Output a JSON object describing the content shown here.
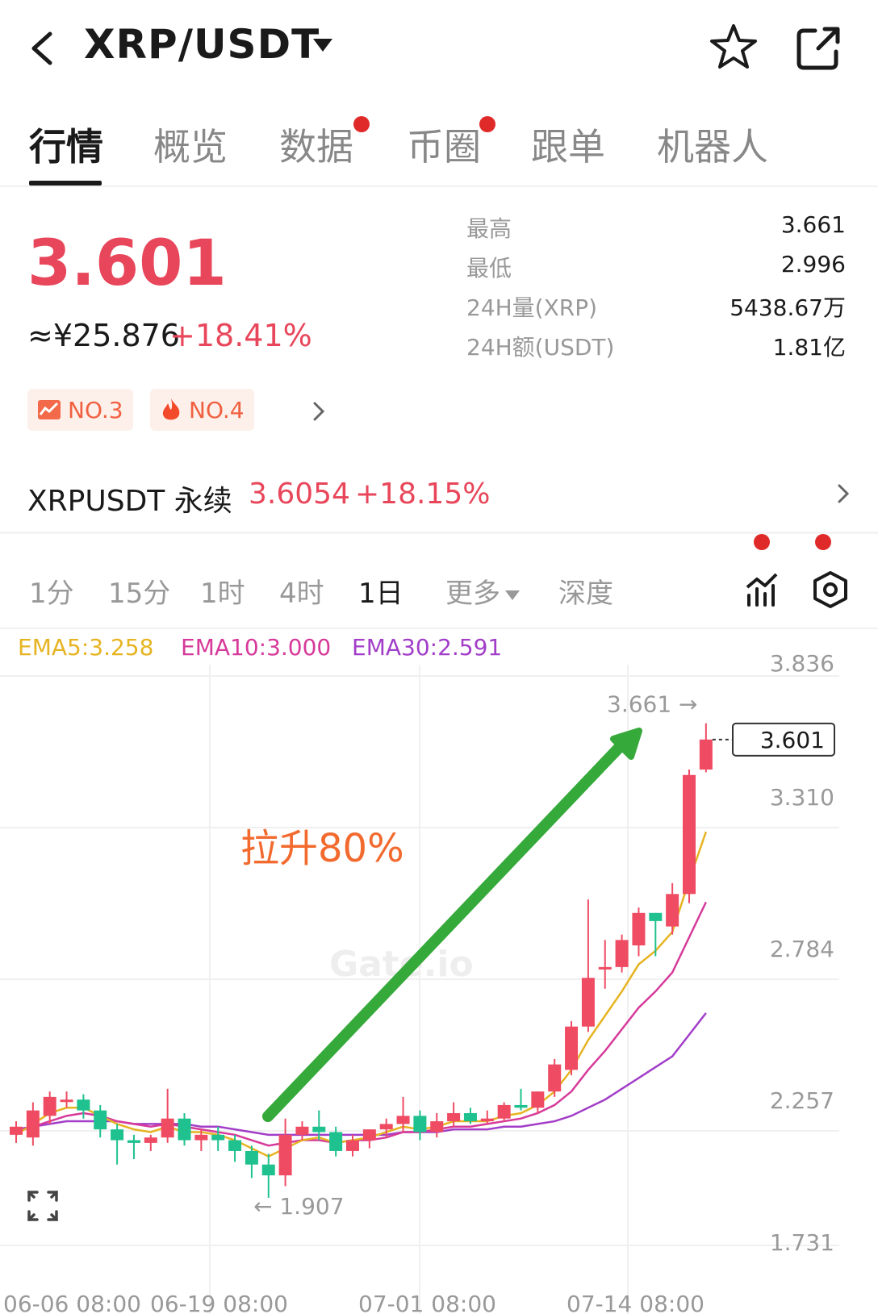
{
  "header": {
    "pair": "XRP/USDT",
    "icons": [
      "back-arrow-icon",
      "caret-down-icon",
      "star-icon",
      "share-icon"
    ]
  },
  "tabs": [
    {
      "label": "行情",
      "active": true,
      "dot": false
    },
    {
      "label": "概览",
      "active": false,
      "dot": false
    },
    {
      "label": "数据",
      "active": false,
      "dot": true
    },
    {
      "label": "币圈",
      "active": false,
      "dot": true
    },
    {
      "label": "跟单",
      "active": false,
      "dot": false
    },
    {
      "label": "机器人",
      "active": false,
      "dot": false
    }
  ],
  "price": {
    "last": "3.601",
    "cny": "≈¥25.876",
    "change_pct": "+18.41%"
  },
  "badges": [
    {
      "icon": "chart-rank-icon",
      "label": "NO.3"
    },
    {
      "icon": "fire-icon",
      "label": "NO.4"
    }
  ],
  "stats": [
    {
      "label": "最高",
      "value": "3.661"
    },
    {
      "label": "最低",
      "value": "2.996"
    },
    {
      "label": "24H量(XRP)",
      "value": "5438.67万"
    },
    {
      "label": "24H额(USDT)",
      "value": "1.81亿"
    }
  ],
  "perpetual": {
    "name": "XRPUSDT 永续",
    "price": "3.6054",
    "change_pct": "+18.15%"
  },
  "intervals": [
    {
      "label": "1分",
      "active": false
    },
    {
      "label": "15分",
      "active": false
    },
    {
      "label": "1时",
      "active": false
    },
    {
      "label": "4时",
      "active": false
    },
    {
      "label": "1日",
      "active": true
    },
    {
      "label": "更多",
      "active": false
    },
    {
      "label": "深度",
      "active": false
    }
  ],
  "ema": [
    {
      "label": "EMA5:3.258",
      "color": "#e6b422"
    },
    {
      "label": "EMA10:3.000",
      "color": "#d63a9a"
    },
    {
      "label": "EMA30:2.591",
      "color": "#a23ec8"
    }
  ],
  "colors": {
    "up": "#ef4b63",
    "down": "#1fc18f",
    "ema5": "#e6b422",
    "ema10": "#d63a9a",
    "ema30": "#a23ec8",
    "annotation_arrow": "#35a93a",
    "annotation_text": "#f26a2e"
  },
  "chart_data": {
    "type": "candlestick",
    "y_ticks": [
      "3.836",
      "3.310",
      "2.784",
      "2.257",
      "1.731"
    ],
    "x_ticks": [
      "06-06 08:00",
      "06-19 08:00",
      "07-01 08:00",
      "07-14 08:00"
    ],
    "ylim": [
      1.731,
      3.836
    ],
    "last_price_label": "3.601",
    "high_marker": "3.661 →",
    "low_marker": "← 1.907",
    "annotation": "拉升80%",
    "watermark": "Gate.io",
    "candles": [
      {
        "o": 2.14,
        "h": 2.19,
        "l": 2.11,
        "c": 2.17
      },
      {
        "o": 2.13,
        "h": 2.26,
        "l": 2.1,
        "c": 2.23
      },
      {
        "o": 2.21,
        "h": 2.3,
        "l": 2.18,
        "c": 2.28
      },
      {
        "o": 2.27,
        "h": 2.3,
        "l": 2.24,
        "c": 2.27
      },
      {
        "o": 2.27,
        "h": 2.29,
        "l": 2.2,
        "c": 2.23
      },
      {
        "o": 2.23,
        "h": 2.25,
        "l": 2.13,
        "c": 2.16
      },
      {
        "o": 2.16,
        "h": 2.18,
        "l": 2.03,
        "c": 2.12
      },
      {
        "o": 2.12,
        "h": 2.14,
        "l": 2.05,
        "c": 2.11
      },
      {
        "o": 2.11,
        "h": 2.14,
        "l": 2.08,
        "c": 2.13
      },
      {
        "o": 2.13,
        "h": 2.31,
        "l": 2.11,
        "c": 2.2
      },
      {
        "o": 2.2,
        "h": 2.22,
        "l": 2.1,
        "c": 2.12
      },
      {
        "o": 2.12,
        "h": 2.16,
        "l": 2.08,
        "c": 2.14
      },
      {
        "o": 2.14,
        "h": 2.17,
        "l": 2.08,
        "c": 2.12
      },
      {
        "o": 2.12,
        "h": 2.14,
        "l": 2.04,
        "c": 2.08
      },
      {
        "o": 2.08,
        "h": 2.1,
        "l": 1.98,
        "c": 2.03
      },
      {
        "o": 2.03,
        "h": 2.07,
        "l": 1.907,
        "c": 1.99
      },
      {
        "o": 1.99,
        "h": 2.2,
        "l": 1.95,
        "c": 2.14
      },
      {
        "o": 2.14,
        "h": 2.19,
        "l": 2.12,
        "c": 2.17
      },
      {
        "o": 2.17,
        "h": 2.23,
        "l": 2.12,
        "c": 2.15
      },
      {
        "o": 2.15,
        "h": 2.17,
        "l": 2.06,
        "c": 2.08
      },
      {
        "o": 2.08,
        "h": 2.14,
        "l": 2.06,
        "c": 2.12
      },
      {
        "o": 2.12,
        "h": 2.16,
        "l": 2.09,
        "c": 2.16
      },
      {
        "o": 2.16,
        "h": 2.2,
        "l": 2.13,
        "c": 2.18
      },
      {
        "o": 2.18,
        "h": 2.28,
        "l": 2.15,
        "c": 2.21
      },
      {
        "o": 2.21,
        "h": 2.23,
        "l": 2.12,
        "c": 2.15
      },
      {
        "o": 2.15,
        "h": 2.22,
        "l": 2.13,
        "c": 2.19
      },
      {
        "o": 2.19,
        "h": 2.26,
        "l": 2.17,
        "c": 2.22
      },
      {
        "o": 2.22,
        "h": 2.24,
        "l": 2.18,
        "c": 2.19
      },
      {
        "o": 2.19,
        "h": 2.23,
        "l": 2.18,
        "c": 2.2
      },
      {
        "o": 2.2,
        "h": 2.26,
        "l": 2.19,
        "c": 2.25
      },
      {
        "o": 2.25,
        "h": 2.31,
        "l": 2.23,
        "c": 2.24
      },
      {
        "o": 2.24,
        "h": 2.3,
        "l": 2.22,
        "c": 2.3
      },
      {
        "o": 2.3,
        "h": 2.42,
        "l": 2.28,
        "c": 2.4
      },
      {
        "o": 2.38,
        "h": 2.56,
        "l": 2.36,
        "c": 2.54
      },
      {
        "o": 2.54,
        "h": 3.01,
        "l": 2.52,
        "c": 2.72
      },
      {
        "o": 2.76,
        "h": 2.86,
        "l": 2.68,
        "c": 2.76
      },
      {
        "o": 2.76,
        "h": 2.88,
        "l": 2.74,
        "c": 2.86
      },
      {
        "o": 2.84,
        "h": 2.98,
        "l": 2.8,
        "c": 2.96
      },
      {
        "o": 2.96,
        "h": 2.96,
        "l": 2.8,
        "c": 2.93
      },
      {
        "o": 2.91,
        "h": 3.07,
        "l": 2.88,
        "c": 3.03
      },
      {
        "o": 3.03,
        "h": 3.49,
        "l": 2.996,
        "c": 3.47
      },
      {
        "o": 3.49,
        "h": 3.661,
        "l": 3.48,
        "c": 3.601
      }
    ],
    "ema5": [
      2.14,
      2.18,
      2.22,
      2.24,
      2.24,
      2.21,
      2.18,
      2.16,
      2.15,
      2.17,
      2.15,
      2.15,
      2.14,
      2.12,
      2.09,
      2.06,
      2.09,
      2.12,
      2.13,
      2.11,
      2.12,
      2.13,
      2.15,
      2.17,
      2.16,
      2.17,
      2.19,
      2.19,
      2.19,
      2.21,
      2.22,
      2.25,
      2.3,
      2.38,
      2.49,
      2.58,
      2.67,
      2.77,
      2.82,
      2.89,
      3.08,
      3.26
    ],
    "ema10": [
      2.15,
      2.17,
      2.19,
      2.21,
      2.22,
      2.21,
      2.19,
      2.18,
      2.17,
      2.18,
      2.17,
      2.16,
      2.15,
      2.14,
      2.12,
      2.1,
      2.11,
      2.12,
      2.12,
      2.11,
      2.12,
      2.12,
      2.13,
      2.15,
      2.15,
      2.16,
      2.17,
      2.17,
      2.18,
      2.19,
      2.2,
      2.22,
      2.25,
      2.3,
      2.38,
      2.45,
      2.53,
      2.61,
      2.67,
      2.74,
      2.87,
      3.0
    ],
    "ema30": [
      2.16,
      2.17,
      2.18,
      2.19,
      2.19,
      2.19,
      2.19,
      2.18,
      2.18,
      2.18,
      2.18,
      2.17,
      2.17,
      2.16,
      2.15,
      2.14,
      2.14,
      2.14,
      2.14,
      2.14,
      2.14,
      2.14,
      2.14,
      2.15,
      2.15,
      2.15,
      2.16,
      2.16,
      2.16,
      2.17,
      2.17,
      2.18,
      2.19,
      2.21,
      2.24,
      2.27,
      2.31,
      2.35,
      2.39,
      2.43,
      2.51,
      2.59
    ]
  }
}
